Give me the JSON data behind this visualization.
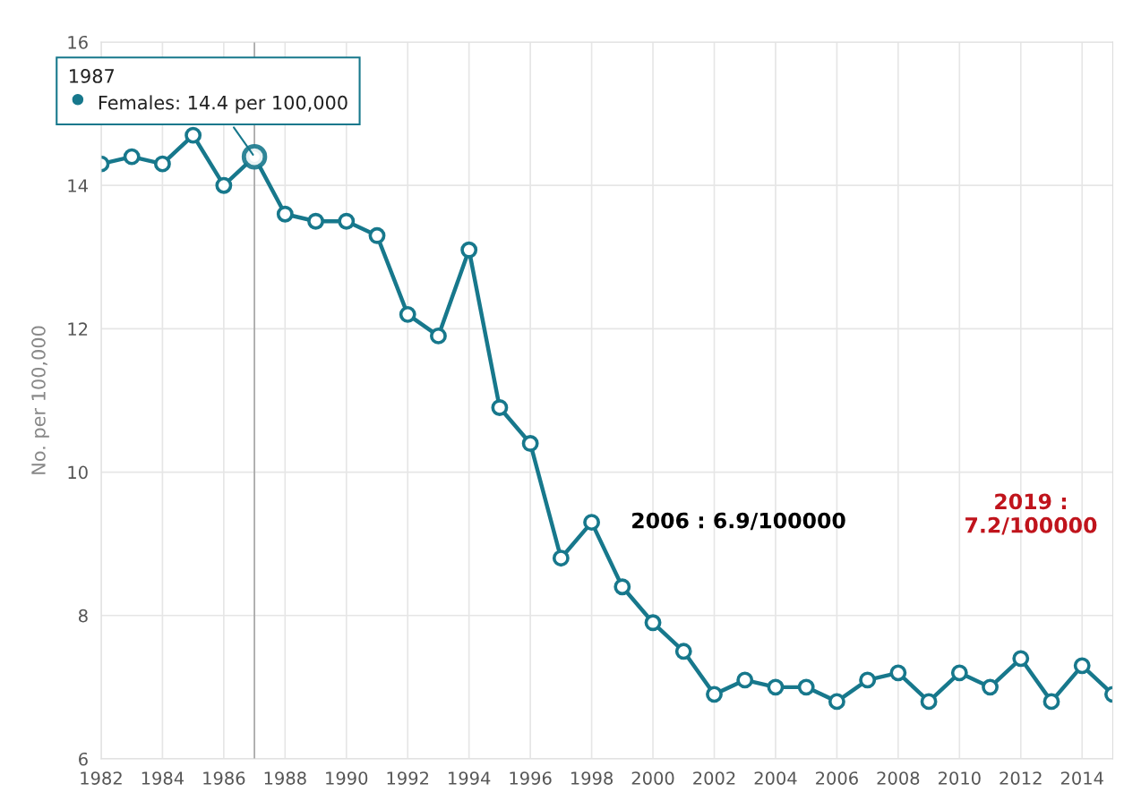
{
  "chart_data": {
    "type": "line",
    "x": [
      1982,
      1983,
      1984,
      1985,
      1986,
      1987,
      1988,
      1989,
      1990,
      1991,
      1992,
      1993,
      1994,
      1995,
      1996,
      1997,
      1998,
      1999,
      2000,
      2001,
      2002,
      2003,
      2004,
      2005,
      2006,
      2007,
      2008,
      2009,
      2010,
      2011,
      2012,
      2013,
      2014,
      2015
    ],
    "series": [
      {
        "color": "#17788c",
        "values": [
          14.3,
          14.4,
          14.3,
          14.7,
          14.0,
          14.4,
          13.6,
          13.5,
          13.5,
          13.3,
          12.2,
          11.9,
          13.1,
          10.9,
          10.4,
          8.8,
          9.3,
          8.4,
          7.9,
          7.5,
          6.9,
          7.1,
          7.0,
          7.0,
          6.8,
          7.1,
          7.2,
          6.8,
          7.2,
          7.0,
          7.4,
          6.8,
          7.3,
          6.9
        ]
      }
    ],
    "ylabel": "No. per 100,000",
    "xlim": [
      1982,
      2015
    ],
    "xticks": [
      1982,
      1984,
      1986,
      1988,
      1990,
      1992,
      1994,
      1996,
      1998,
      2000,
      2002,
      2004,
      2006,
      2008,
      2010,
      2012,
      2014
    ],
    "ylim": [
      6,
      16
    ],
    "yticks": [
      6,
      8,
      10,
      12,
      14,
      16
    ],
    "grid": true,
    "legend": false,
    "marker": "circle",
    "line_style": "solid",
    "ref_lines": [
      {
        "axis": "x",
        "value": 1987,
        "color": "#aaaaaa"
      }
    ],
    "annotations": [
      {
        "text": "1987\n     Females: 14.4 per 100,000",
        "x": 1987,
        "y": 14.4
      },
      "2006 : 6.9/100000",
      "2019 :\n7.2/100000"
    ]
  }
}
